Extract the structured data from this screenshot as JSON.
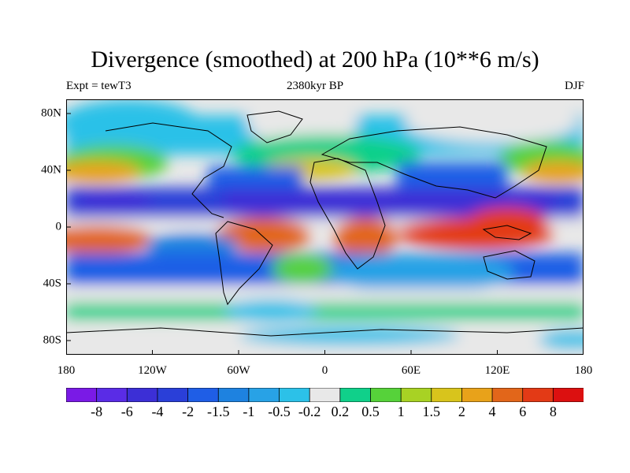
{
  "title": "Divergence (smoothed) at 200 hPa (10**6 m/s)",
  "left_label": "Expt = tewT3",
  "center_label": "2380kyr BP",
  "right_label": "DJF",
  "x_ticks": [
    "180",
    "120W",
    "60W",
    "0",
    "60E",
    "120E",
    "180"
  ],
  "y_ticks": [
    "80N",
    "40N",
    "0",
    "40S",
    "80S"
  ],
  "chart_data": {
    "type": "heatmap",
    "projection": "cylindrical-equidistant",
    "variable": "Divergence (smoothed) at 200 hPa",
    "units": "10**6 m/s",
    "season": "DJF",
    "lon_range": [
      -180,
      180
    ],
    "lat_range": [
      -90,
      90
    ],
    "x_ticks_values": [
      -180,
      -120,
      -60,
      0,
      60,
      120,
      180
    ],
    "y_ticks_values": [
      80,
      40,
      0,
      -40,
      -80
    ],
    "contour_levels": [
      "-8",
      "-6",
      "-4",
      "-2",
      "-1.5",
      "-1",
      "-0.5",
      "-0.2",
      "0.2",
      "0.5",
      "1",
      "1.5",
      "2",
      "4",
      "6",
      "8"
    ],
    "colors": [
      "#7a1ae6",
      "#5a2ce6",
      "#3c2fd6",
      "#2a3fd8",
      "#1f5ee6",
      "#1e82e0",
      "#28a2e6",
      "#2cc1e8",
      "#e8e8e8",
      "#10d08a",
      "#56d23a",
      "#a8d224",
      "#d8c41c",
      "#e8a21a",
      "#e2661a",
      "#e33a16",
      "#dc1010"
    ]
  }
}
